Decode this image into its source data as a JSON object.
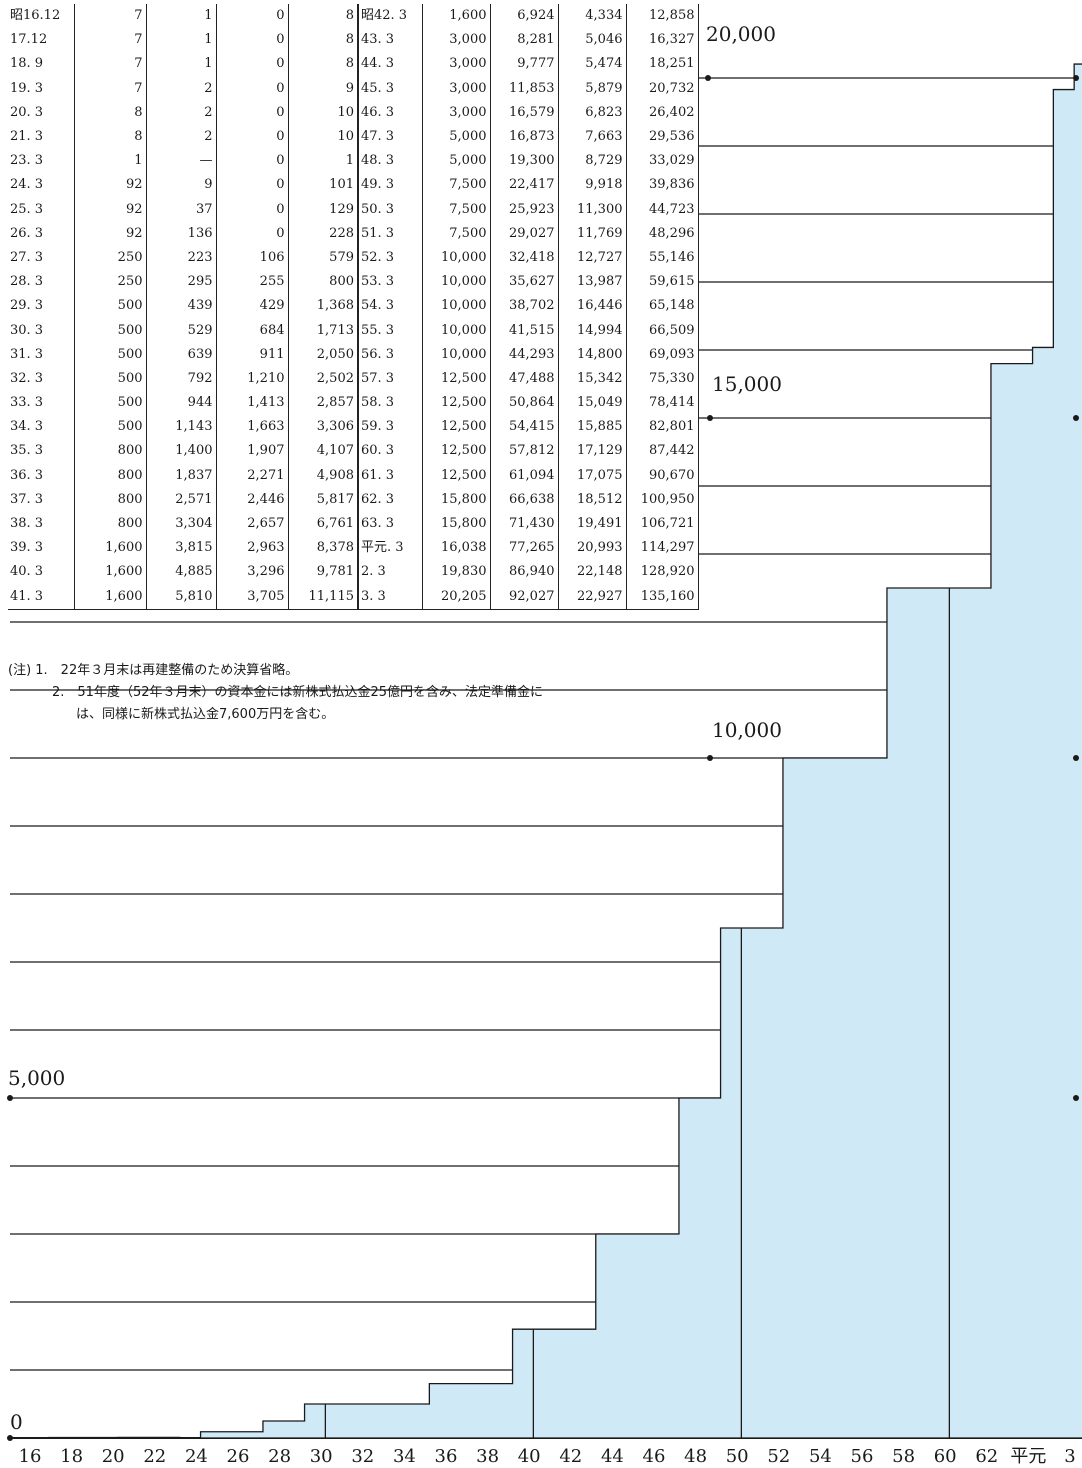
{
  "table": {
    "left_rows": [
      {
        "date": "昭16.12",
        "a": "7",
        "b": "1",
        "c": "0",
        "d": "8"
      },
      {
        "date": "17.12",
        "a": "7",
        "b": "1",
        "c": "0",
        "d": "8"
      },
      {
        "date": "18. 9",
        "a": "7",
        "b": "1",
        "c": "0",
        "d": "8"
      },
      {
        "date": "19. 3",
        "a": "7",
        "b": "2",
        "c": "0",
        "d": "9"
      },
      {
        "date": "20. 3",
        "a": "8",
        "b": "2",
        "c": "0",
        "d": "10"
      },
      {
        "date": "21. 3",
        "a": "8",
        "b": "2",
        "c": "0",
        "d": "10"
      },
      {
        "date": "23. 3",
        "a": "1",
        "b": "—",
        "c": "0",
        "d": "1"
      },
      {
        "date": "24. 3",
        "a": "92",
        "b": "9",
        "c": "0",
        "d": "101"
      },
      {
        "date": "25. 3",
        "a": "92",
        "b": "37",
        "c": "0",
        "d": "129"
      },
      {
        "date": "26. 3",
        "a": "92",
        "b": "136",
        "c": "0",
        "d": "228"
      },
      {
        "date": "27. 3",
        "a": "250",
        "b": "223",
        "c": "106",
        "d": "579"
      },
      {
        "date": "28. 3",
        "a": "250",
        "b": "295",
        "c": "255",
        "d": "800"
      },
      {
        "date": "29. 3",
        "a": "500",
        "b": "439",
        "c": "429",
        "d": "1,368"
      },
      {
        "date": "30. 3",
        "a": "500",
        "b": "529",
        "c": "684",
        "d": "1,713"
      },
      {
        "date": "31. 3",
        "a": "500",
        "b": "639",
        "c": "911",
        "d": "2,050"
      },
      {
        "date": "32. 3",
        "a": "500",
        "b": "792",
        "c": "1,210",
        "d": "2,502"
      },
      {
        "date": "33. 3",
        "a": "500",
        "b": "944",
        "c": "1,413",
        "d": "2,857"
      },
      {
        "date": "34. 3",
        "a": "500",
        "b": "1,143",
        "c": "1,663",
        "d": "3,306"
      },
      {
        "date": "35. 3",
        "a": "800",
        "b": "1,400",
        "c": "1,907",
        "d": "4,107"
      },
      {
        "date": "36. 3",
        "a": "800",
        "b": "1,837",
        "c": "2,271",
        "d": "4,908"
      },
      {
        "date": "37. 3",
        "a": "800",
        "b": "2,571",
        "c": "2,446",
        "d": "5,817"
      },
      {
        "date": "38. 3",
        "a": "800",
        "b": "3,304",
        "c": "2,657",
        "d": "6,761"
      },
      {
        "date": "39. 3",
        "a": "1,600",
        "b": "3,815",
        "c": "2,963",
        "d": "8,378"
      },
      {
        "date": "40. 3",
        "a": "1,600",
        "b": "4,885",
        "c": "3,296",
        "d": "9,781"
      },
      {
        "date": "41. 3",
        "a": "1,600",
        "b": "5,810",
        "c": "3,705",
        "d": "11,115"
      }
    ],
    "right_rows": [
      {
        "date": "昭42. 3",
        "a": "1,600",
        "b": "6,924",
        "c": "4,334",
        "d": "12,858"
      },
      {
        "date": "43. 3",
        "a": "3,000",
        "b": "8,281",
        "c": "5,046",
        "d": "16,327"
      },
      {
        "date": "44. 3",
        "a": "3,000",
        "b": "9,777",
        "c": "5,474",
        "d": "18,251"
      },
      {
        "date": "45. 3",
        "a": "3,000",
        "b": "11,853",
        "c": "5,879",
        "d": "20,732"
      },
      {
        "date": "46. 3",
        "a": "3,000",
        "b": "16,579",
        "c": "6,823",
        "d": "26,402"
      },
      {
        "date": "47. 3",
        "a": "5,000",
        "b": "16,873",
        "c": "7,663",
        "d": "29,536"
      },
      {
        "date": "48. 3",
        "a": "5,000",
        "b": "19,300",
        "c": "8,729",
        "d": "33,029"
      },
      {
        "date": "49. 3",
        "a": "7,500",
        "b": "22,417",
        "c": "9,918",
        "d": "39,836"
      },
      {
        "date": "50. 3",
        "a": "7,500",
        "b": "25,923",
        "c": "11,300",
        "d": "44,723"
      },
      {
        "date": "51. 3",
        "a": "7,500",
        "b": "29,027",
        "c": "11,769",
        "d": "48,296"
      },
      {
        "date": "52. 3",
        "a": "10,000",
        "b": "32,418",
        "c": "12,727",
        "d": "55,146"
      },
      {
        "date": "53. 3",
        "a": "10,000",
        "b": "35,627",
        "c": "13,987",
        "d": "59,615"
      },
      {
        "date": "54. 3",
        "a": "10,000",
        "b": "38,702",
        "c": "16,446",
        "d": "65,148"
      },
      {
        "date": "55. 3",
        "a": "10,000",
        "b": "41,515",
        "c": "14,994",
        "d": "66,509"
      },
      {
        "date": "56. 3",
        "a": "10,000",
        "b": "44,293",
        "c": "14,800",
        "d": "69,093"
      },
      {
        "date": "57. 3",
        "a": "12,500",
        "b": "47,488",
        "c": "15,342",
        "d": "75,330"
      },
      {
        "date": "58. 3",
        "a": "12,500",
        "b": "50,864",
        "c": "15,049",
        "d": "78,414"
      },
      {
        "date": "59. 3",
        "a": "12,500",
        "b": "54,415",
        "c": "15,885",
        "d": "82,801"
      },
      {
        "date": "60. 3",
        "a": "12,500",
        "b": "57,812",
        "c": "17,129",
        "d": "87,442"
      },
      {
        "date": "61. 3",
        "a": "12,500",
        "b": "61,094",
        "c": "17,075",
        "d": "90,670"
      },
      {
        "date": "62. 3",
        "a": "15,800",
        "b": "66,638",
        "c": "18,512",
        "d": "100,950"
      },
      {
        "date": "63. 3",
        "a": "15,800",
        "b": "71,430",
        "c": "19,491",
        "d": "106,721"
      },
      {
        "date": "平元. 3",
        "a": "16,038",
        "b": "77,265",
        "c": "20,993",
        "d": "114,297"
      },
      {
        "date": "2. 3",
        "a": "19,830",
        "b": "86,940",
        "c": "22,148",
        "d": "128,920"
      },
      {
        "date": "3. 3",
        "a": "20,205",
        "b": "92,027",
        "c": "22,927",
        "d": "135,160"
      }
    ]
  },
  "notes": {
    "line1": "(注) 1.　22年３月末は再建整備のため決算省略。",
    "line2": "2.　51年度（52年３月末）の資本金には新株式払込金25億円を含み、法定準備金に",
    "line3": "は、同様に新株式払込金7,600万円を含む。"
  },
  "chart_data": {
    "type": "area",
    "step": true,
    "fill_color": "#cfeaf6",
    "line_color": "#1a1a1a",
    "y_tick_labels": [
      "0",
      "5,000",
      "10,000",
      "15,000",
      "20,000"
    ],
    "ylim": [
      0,
      21000
    ],
    "x_tick_labels": [
      "16",
      "18",
      "20",
      "22",
      "24",
      "26",
      "28",
      "30",
      "32",
      "34",
      "36",
      "38",
      "40",
      "42",
      "44",
      "46",
      "48",
      "50",
      "52",
      "54",
      "56",
      "58",
      "60",
      "62",
      "平元",
      "3"
    ],
    "series": [
      {
        "x": [
          16.9,
          17.9,
          18.6,
          19.2,
          20.2,
          21.2,
          23.2,
          24.2,
          25.2,
          26.2,
          27.2,
          28.2,
          29.2,
          30.2,
          31.2,
          32.2,
          33.2,
          34.2,
          35.2,
          36.2,
          37.2,
          38.2,
          39.2,
          40.2,
          41.2,
          42.2,
          43.2,
          44.2,
          45.2,
          46.2,
          47.2,
          48.2,
          49.2,
          50.2,
          51.2,
          52.2,
          53.2,
          54.2,
          55.2,
          56.2,
          57.2,
          58.2,
          59.2,
          60.2,
          61.2,
          62.2,
          63.2,
          64.2,
          65.2,
          66.2
        ],
        "values": [
          7,
          7,
          7,
          7,
          8,
          8,
          1,
          92,
          92,
          92,
          250,
          250,
          500,
          500,
          500,
          500,
          500,
          500,
          800,
          800,
          800,
          800,
          1600,
          1600,
          1600,
          1600,
          3000,
          3000,
          3000,
          3000,
          5000,
          5000,
          7500,
          7500,
          7500,
          10000,
          10000,
          10000,
          10000,
          10000,
          12500,
          12500,
          12500,
          12500,
          12500,
          15800,
          15800,
          16038,
          19830,
          20205
        ]
      }
    ],
    "grid": true
  }
}
